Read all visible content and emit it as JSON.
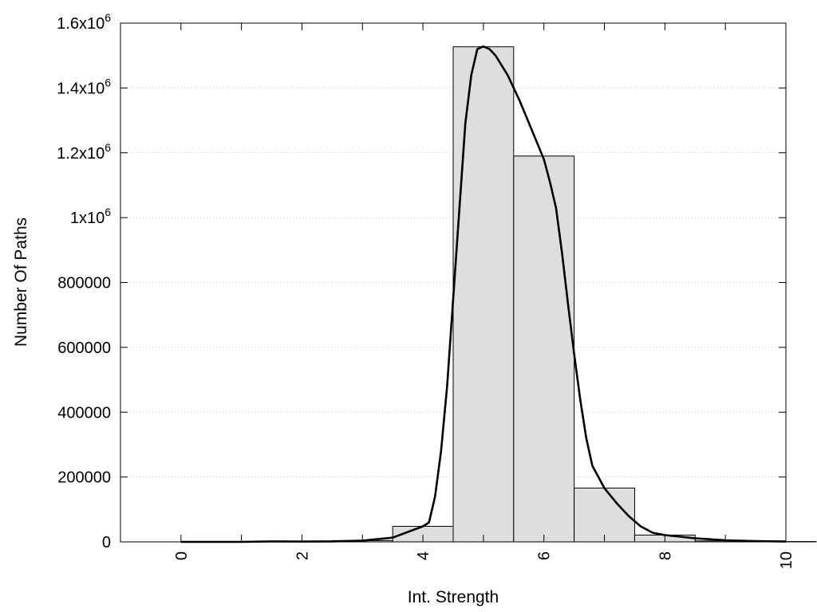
{
  "chart_data": {
    "type": "bar",
    "title": "",
    "xlabel": "Int. Strength",
    "ylabel": "Number Of Paths",
    "xlim": [
      -1,
      10
    ],
    "ylim": [
      0,
      1600000
    ],
    "grid": true,
    "x_ticks": [
      {
        "value": 0,
        "label": "0"
      },
      {
        "value": 2,
        "label": "2"
      },
      {
        "value": 4,
        "label": "4"
      },
      {
        "value": 6,
        "label": "6"
      },
      {
        "value": 8,
        "label": "8"
      },
      {
        "value": 10,
        "label": "10"
      }
    ],
    "y_ticks": [
      {
        "value": 0,
        "base": "0",
        "exp": ""
      },
      {
        "value": 200000,
        "base": "200000",
        "exp": ""
      },
      {
        "value": 400000,
        "base": "400000",
        "exp": ""
      },
      {
        "value": 600000,
        "base": "600000",
        "exp": ""
      },
      {
        "value": 800000,
        "base": "800000",
        "exp": ""
      },
      {
        "value": 1000000,
        "base": "1x10",
        "exp": "6"
      },
      {
        "value": 1200000,
        "base": "1.2x10",
        "exp": "6"
      },
      {
        "value": 1400000,
        "base": "1.4x10",
        "exp": "6"
      },
      {
        "value": 1600000,
        "base": "1.6x10",
        "exp": "6"
      }
    ],
    "bars": [
      {
        "x": 0,
        "value": 0
      },
      {
        "x": 1,
        "value": 0
      },
      {
        "x": 2,
        "value": 1000
      },
      {
        "x": 3,
        "value": 4000
      },
      {
        "x": 4,
        "value": 48000
      },
      {
        "x": 5,
        "value": 1527000
      },
      {
        "x": 6,
        "value": 1190000
      },
      {
        "x": 7,
        "value": 166000
      },
      {
        "x": 8,
        "value": 21000
      },
      {
        "x": 9,
        "value": 3000
      },
      {
        "x": 10,
        "value": 1000
      }
    ],
    "curve": [
      [
        0,
        0
      ],
      [
        1,
        0
      ],
      [
        1.5,
        1500
      ],
      [
        2,
        1000
      ],
      [
        2.5,
        1500
      ],
      [
        3,
        4000
      ],
      [
        3.5,
        13000
      ],
      [
        4,
        48000
      ],
      [
        4.1,
        60000
      ],
      [
        4.2,
        140000
      ],
      [
        4.3,
        280000
      ],
      [
        4.4,
        480000
      ],
      [
        4.5,
        750000
      ],
      [
        4.6,
        1020000
      ],
      [
        4.7,
        1290000
      ],
      [
        4.8,
        1440000
      ],
      [
        4.9,
        1520000
      ],
      [
        5,
        1528000
      ],
      [
        5.1,
        1520000
      ],
      [
        5.2,
        1500000
      ],
      [
        5.4,
        1440000
      ],
      [
        5.6,
        1360000
      ],
      [
        5.8,
        1270000
      ],
      [
        6,
        1180000
      ],
      [
        6.1,
        1110000
      ],
      [
        6.2,
        1030000
      ],
      [
        6.3,
        890000
      ],
      [
        6.4,
        730000
      ],
      [
        6.5,
        580000
      ],
      [
        6.6,
        440000
      ],
      [
        6.7,
        320000
      ],
      [
        6.8,
        235000
      ],
      [
        7,
        166000
      ],
      [
        7.2,
        120000
      ],
      [
        7.4,
        80000
      ],
      [
        7.6,
        48000
      ],
      [
        7.8,
        28000
      ],
      [
        8,
        21000
      ],
      [
        8.5,
        11000
      ],
      [
        9,
        5000
      ],
      [
        9.5,
        2500
      ],
      [
        10,
        1000
      ]
    ]
  }
}
